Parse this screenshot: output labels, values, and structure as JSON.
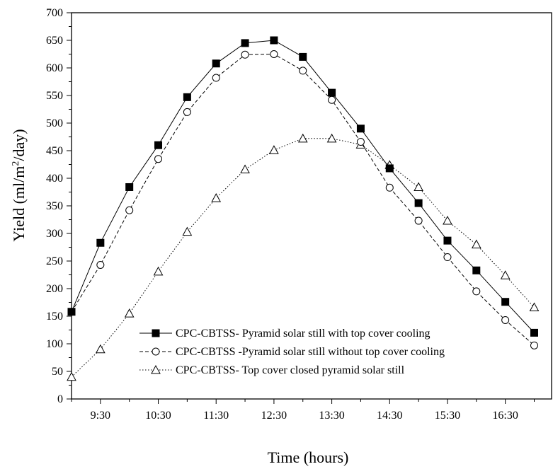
{
  "chart_data": {
    "type": "line",
    "xlabel": "Time (hours)",
    "ylabel_main": "Yield (ml/m",
    "ylabel_sup": "2",
    "ylabel_end": "/day)",
    "ylim": [
      0,
      700
    ],
    "y_major_step": 50,
    "xlim": [
      9.0,
      17.3
    ],
    "x_tick_values": [
      9.5,
      10.5,
      11.5,
      12.5,
      13.5,
      14.5,
      15.5,
      16.5
    ],
    "x_tick_labels": [
      "9:30",
      "10:30",
      "11:30",
      "12:30",
      "13:30",
      "14:30",
      "15:30",
      "16:30"
    ],
    "legend_position": "bottom-left",
    "series": [
      {
        "name": "CPC-CBTSS- Pyramid solar still with top cover cooling",
        "marker": "filled-square",
        "line": "solid",
        "x": [
          9.0,
          9.5,
          10.0,
          10.5,
          11.0,
          11.5,
          12.0,
          12.5,
          13.0,
          13.5,
          14.0,
          14.5,
          15.0,
          15.5,
          16.0,
          16.5,
          17.0
        ],
        "values": [
          158,
          283,
          384,
          460,
          547,
          608,
          645,
          650,
          620,
          555,
          490,
          418,
          355,
          287,
          233,
          176,
          120
        ]
      },
      {
        "name": "CPC-CBTSS -Pyramid solar still without top cover cooling",
        "marker": "open-circle",
        "line": "dashed",
        "x": [
          9.0,
          9.5,
          10.0,
          10.5,
          11.0,
          11.5,
          12.0,
          12.5,
          13.0,
          13.5,
          14.0,
          14.5,
          15.0,
          15.5,
          16.0,
          16.5,
          17.0
        ],
        "values": [
          158,
          243,
          342,
          435,
          520,
          582,
          624,
          625,
          595,
          542,
          466,
          383,
          323,
          257,
          195,
          143,
          97
        ]
      },
      {
        "name": "CPC-CBTSS- Top cover closed pyramid solar still",
        "marker": "open-triangle",
        "line": "dotted",
        "x": [
          9.0,
          9.5,
          10.0,
          10.5,
          11.0,
          11.5,
          12.0,
          12.5,
          13.0,
          13.5,
          14.0,
          14.5,
          15.0,
          15.5,
          16.0,
          16.5,
          17.0
        ],
        "values": [
          40,
          90,
          155,
          231,
          303,
          364,
          416,
          451,
          472,
          472,
          461,
          424,
          384,
          323,
          280,
          224,
          166
        ]
      }
    ]
  }
}
